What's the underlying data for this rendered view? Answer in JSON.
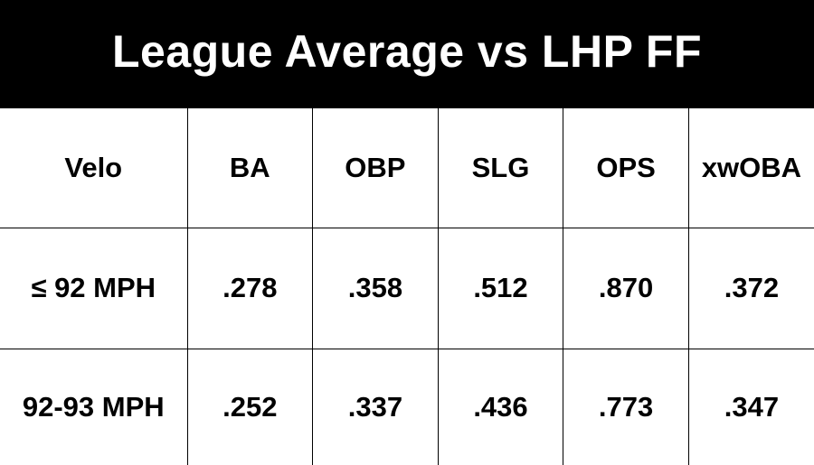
{
  "title": "League Average vs LHP FF",
  "table": {
    "headers": [
      "Velo",
      "BA",
      "OBP",
      "SLG",
      "OPS",
      "xwOBA"
    ],
    "rows": [
      [
        "≤ 92 MPH",
        ".278",
        ".358",
        ".512",
        ".870",
        ".372"
      ],
      [
        "92-93 MPH",
        ".252",
        ".337",
        ".436",
        ".773",
        ".347"
      ]
    ]
  },
  "colors": {
    "title_background": "#000000",
    "title_text": "#ffffff",
    "grid_lines": "#000000",
    "cell_background": "#ffffff"
  }
}
